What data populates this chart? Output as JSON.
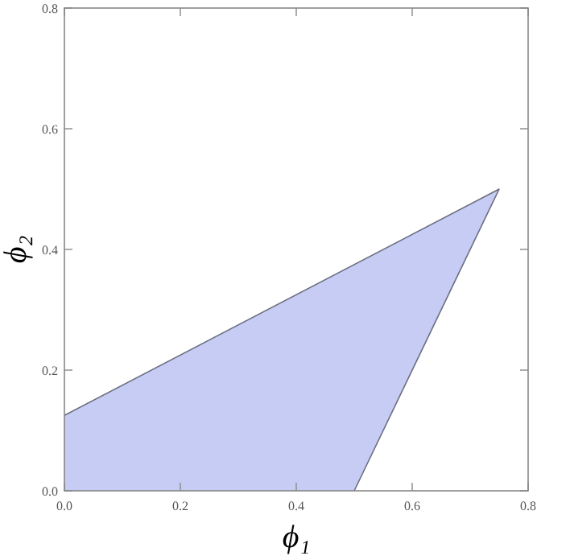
{
  "chart_data": {
    "type": "area",
    "xlabel": "ϕ₁",
    "ylabel": "ϕ₂",
    "x": [
      0,
      0.75,
      0.5
    ],
    "series": [
      {
        "color": "#c6ccf4",
        "values": [
          0.125,
          0.5,
          0
        ]
      }
    ],
    "xlim": [
      0,
      0.8
    ],
    "ylim": [
      0,
      0.8
    ],
    "xticks": [
      {
        "value": 0,
        "label": "0.0"
      },
      {
        "value": 0.2,
        "label": "0.2"
      },
      {
        "value": 0.4,
        "label": "0.4"
      },
      {
        "value": 0.6,
        "label": "0.6"
      },
      {
        "value": 0.8,
        "label": "0.8"
      }
    ],
    "yticks": [
      {
        "value": 0,
        "label": "0.0"
      },
      {
        "value": 0.2,
        "label": "0.2"
      },
      {
        "value": 0.4,
        "label": "0.4"
      },
      {
        "value": 0.6,
        "label": "0.6"
      },
      {
        "value": 0.8,
        "label": "0.8"
      }
    ],
    "grid": false
  }
}
